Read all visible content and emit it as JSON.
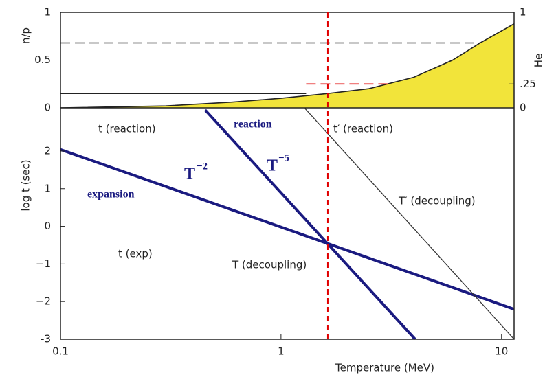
{
  "chart_data": [
    {
      "type": "line",
      "ylabel": "n/p",
      "y2label": "He",
      "xlim": [
        0.1,
        11.4
      ],
      "xscale": "log",
      "ylim": [
        0,
        1
      ],
      "yticks": [
        0,
        0.5,
        1
      ],
      "y2lim": [
        0,
        1
      ],
      "y2ticks": [
        0,
        {
          "value": 0.25,
          "label": ".25"
        },
        1
      ],
      "series": [
        {
          "color": "#222",
          "fill": "#f2e43a",
          "x": [
            0.1,
            0.3,
            0.6,
            1,
            1.63,
            2.5,
            4,
            6,
            8,
            11.4
          ],
          "values": [
            0,
            0.02,
            0.06,
            0.1,
            0.15,
            0.2,
            0.32,
            0.5,
            0.68,
            0.88
          ]
        },
        {
          "color": "#222",
          "x": [
            0.1,
            1.3
          ],
          "values": [
            0.15,
            0.15
          ]
        },
        {
          "color": "#222",
          "dash": true,
          "x": [
            0.1,
            8
          ],
          "values": [
            0.68,
            0.68
          ]
        },
        {
          "color": "#e00000",
          "dash": true,
          "axis": "y2",
          "x": [
            1.3,
            3.2
          ],
          "values": [
            0.25,
            0.25
          ]
        }
      ]
    },
    {
      "type": "line",
      "ylabel": "log t (sec)",
      "xlabel": "Temperature (MeV)",
      "xlim": [
        0.1,
        11.4
      ],
      "xscale": "log",
      "xticks": [
        0.1,
        1,
        10
      ],
      "ylim": [
        -3,
        3.13
      ],
      "yticks": [
        -3,
        {
          "value": -2,
          "label": "−2"
        },
        {
          "value": -1,
          "label": "−1"
        },
        0,
        1,
        2
      ],
      "vline": 1.63,
      "vline_color": "#e00000",
      "series": [
        {
          "color": "#1a1a80",
          "width": 4,
          "x": [
            0.1,
            11.4
          ],
          "values": [
            2.04,
            -2.2
          ]
        },
        {
          "color": "#1a1a80",
          "width": 4,
          "x": [
            0.453,
            4.06
          ],
          "values": [
            3.09,
            -3
          ]
        },
        {
          "color": "#333",
          "width": 1.3,
          "x": [
            1.285,
            11.4
          ],
          "values": [
            3.13,
            -3
          ]
        }
      ],
      "annotations": [
        "t (reaction)",
        "reaction",
        "t′ (reaction)",
        "T",
        "−2",
        "T",
        "−5",
        "expansion",
        "T′ (decoupling)",
        "t (exp)",
        "T (decoupling)"
      ]
    }
  ]
}
